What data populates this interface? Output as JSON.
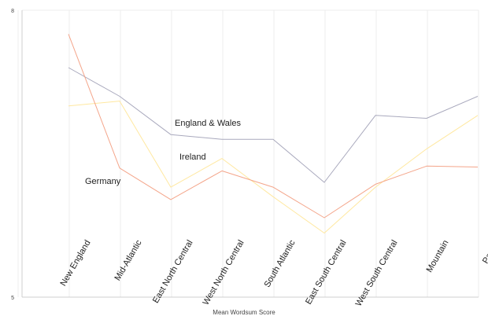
{
  "chart_data": {
    "type": "line",
    "title": "",
    "xlabel": "Mean Wordsum Score",
    "ylabel": "",
    "ylim": [
      5,
      8
    ],
    "yticks": [
      "8",
      "5"
    ],
    "grid": true,
    "categories": [
      "New England",
      "Mid-Atlantic",
      "East North Central",
      "West North Central",
      "South Atlantic",
      "East South Central",
      "West South Central",
      "Mountain",
      "Pacific"
    ],
    "series": [
      {
        "name": "England & Wales",
        "color": "#a9a9bd",
        "values": [
          7.4,
          7.1,
          6.7,
          6.65,
          6.65,
          6.2,
          6.9,
          6.87,
          7.1
        ]
      },
      {
        "name": "Ireland",
        "color": "#ffe8a0",
        "values": [
          7.0,
          7.05,
          6.15,
          6.45,
          6.05,
          5.67,
          6.15,
          6.55,
          6.9
        ]
      },
      {
        "name": "Germany",
        "color": "#f4a58a",
        "values": [
          7.75,
          6.35,
          6.02,
          6.32,
          6.15,
          5.83,
          6.18,
          6.37,
          6.36
        ]
      }
    ]
  }
}
